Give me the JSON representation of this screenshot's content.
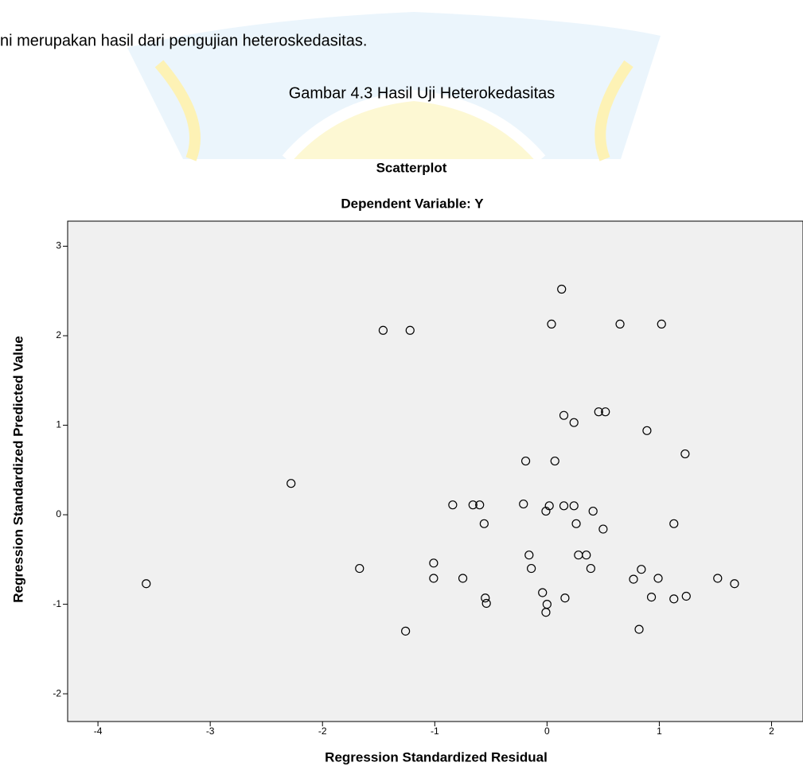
{
  "document": {
    "text_line": "ni merupakan hasil dari pengujian heteroskedasitas.",
    "caption": "Gambar 4.3 Hasil Uji Heterokedasitas"
  },
  "chart_data": {
    "type": "scatter",
    "title": "Scatterplot",
    "subtitle": "Dependent Variable: Y",
    "x_label": "Regression Standardized Residual",
    "y_label": "Regression Standardized Predicted Value",
    "color": "#000000",
    "x": [
      0.13,
      0.04,
      0.65,
      1.02,
      -1.46,
      -1.22,
      0.15,
      0.24,
      0.46,
      0.52,
      0.89,
      1.23,
      -0.19,
      0.07,
      -2.28,
      -0.84,
      -0.66,
      -0.6,
      -0.21,
      0.02,
      0.15,
      0.24,
      -0.01,
      0.41,
      -0.56,
      0.26,
      0.5,
      1.13,
      -0.16,
      0.28,
      0.35,
      -1.01,
      -1.67,
      -0.14,
      0.39,
      0.84,
      -1.01,
      -0.75,
      0.77,
      0.99,
      1.52,
      1.67,
      -3.57,
      -0.04,
      -0.55,
      -0.54,
      0.16,
      0.93,
      1.13,
      1.24,
      0.0,
      -0.01,
      -1.26,
      0.82
    ],
    "values": [
      2.52,
      2.13,
      2.13,
      2.13,
      2.06,
      2.06,
      1.11,
      1.03,
      1.15,
      1.15,
      0.94,
      0.68,
      0.6,
      0.6,
      0.35,
      0.11,
      0.11,
      0.11,
      0.12,
      0.1,
      0.1,
      0.1,
      0.04,
      0.04,
      -0.1,
      -0.1,
      -0.16,
      -0.1,
      -0.45,
      -0.45,
      -0.45,
      -0.54,
      -0.6,
      -0.6,
      -0.6,
      -0.61,
      -0.71,
      -0.71,
      -0.72,
      -0.71,
      -0.71,
      -0.77,
      -0.77,
      -0.87,
      -0.93,
      -0.99,
      -0.93,
      -0.92,
      -0.94,
      -0.91,
      -1.0,
      -1.09,
      -1.3,
      -1.28
    ],
    "xlim": [
      -4.27,
      2.28
    ],
    "ylim": [
      -2.31,
      3.28
    ],
    "xticks": [
      -4,
      -3,
      -2,
      -1,
      0,
      1,
      2
    ],
    "yticks": [
      -2,
      -1,
      0,
      1,
      2,
      3
    ]
  }
}
